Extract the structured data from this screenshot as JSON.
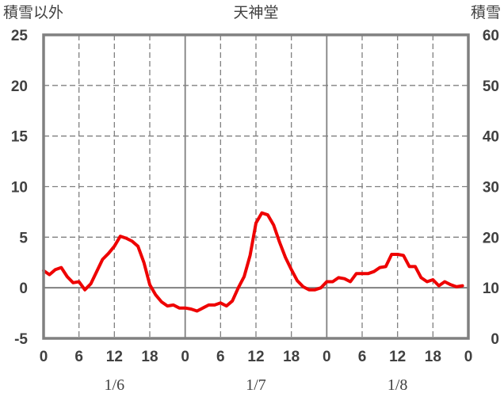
{
  "chart_data": {
    "type": "line",
    "title": "天神堂",
    "left_axis_label": "積雪以外",
    "right_axis_label": "積雪",
    "y_left": {
      "min": -5,
      "max": 25,
      "ticks": [
        25,
        20,
        15,
        10,
        5,
        0,
        -5
      ]
    },
    "y_right": {
      "min": 0,
      "max": 60,
      "ticks": [
        60,
        50,
        40,
        30,
        20,
        10,
        0
      ]
    },
    "x": {
      "min": 0,
      "max": 72,
      "tick_hours": [
        0,
        6,
        12,
        18,
        24,
        30,
        36,
        42,
        48,
        54,
        60,
        66,
        72
      ],
      "tick_labels": [
        "0",
        "6",
        "12",
        "18",
        "0",
        "6",
        "12",
        "18",
        "0",
        "6",
        "12",
        "18",
        "0"
      ],
      "day_lines": [
        24,
        48
      ],
      "dashed_lines": [
        6,
        18,
        30,
        42,
        54,
        66
      ]
    },
    "date_labels": [
      {
        "label": "1/6",
        "hour": 12
      },
      {
        "label": "1/7",
        "hour": 36
      },
      {
        "label": "1/8",
        "hour": 60
      }
    ],
    "grid": true,
    "series": [
      {
        "axis": "left",
        "color": "#ee0000",
        "x": [
          0,
          1,
          2,
          3,
          4,
          5,
          6,
          7,
          8,
          9,
          10,
          11,
          12,
          13,
          14,
          15,
          16,
          17,
          18,
          19,
          20,
          21,
          22,
          23,
          24,
          25,
          26,
          27,
          28,
          29,
          30,
          31,
          32,
          33,
          34,
          35,
          36,
          37,
          38,
          39,
          40,
          41,
          42,
          43,
          44,
          45,
          46,
          47,
          48,
          49,
          50,
          51,
          52,
          53,
          54,
          55,
          56,
          57,
          58,
          59,
          60,
          61,
          62,
          63,
          64,
          65,
          66,
          67,
          68,
          69,
          70,
          71
        ],
        "y": [
          1.7,
          1.3,
          1.8,
          2.0,
          1.1,
          0.5,
          0.6,
          -0.2,
          0.4,
          1.6,
          2.8,
          3.4,
          4.1,
          5.1,
          4.9,
          4.6,
          4.1,
          2.5,
          0.3,
          -0.7,
          -1.4,
          -1.8,
          -1.7,
          -2.0,
          -2.0,
          -2.1,
          -2.3,
          -2.0,
          -1.7,
          -1.7,
          -1.5,
          -1.8,
          -1.3,
          0.0,
          1.1,
          3.2,
          6.4,
          7.4,
          7.2,
          6.2,
          4.5,
          3.0,
          1.8,
          0.7,
          0.1,
          -0.2,
          -0.2,
          0.0,
          0.6,
          0.6,
          1.0,
          0.9,
          0.6,
          1.4,
          1.4,
          1.4,
          1.6,
          2.0,
          2.1,
          3.3,
          3.3,
          3.2,
          2.1,
          2.1,
          1.0,
          0.6,
          0.8,
          0.2,
          0.6,
          0.3,
          0.1,
          0.2
        ]
      },
      {
        "axis": "right",
        "color": "#7030a0",
        "x": [
          0,
          72
        ],
        "y": [
          0,
          0
        ]
      }
    ]
  }
}
